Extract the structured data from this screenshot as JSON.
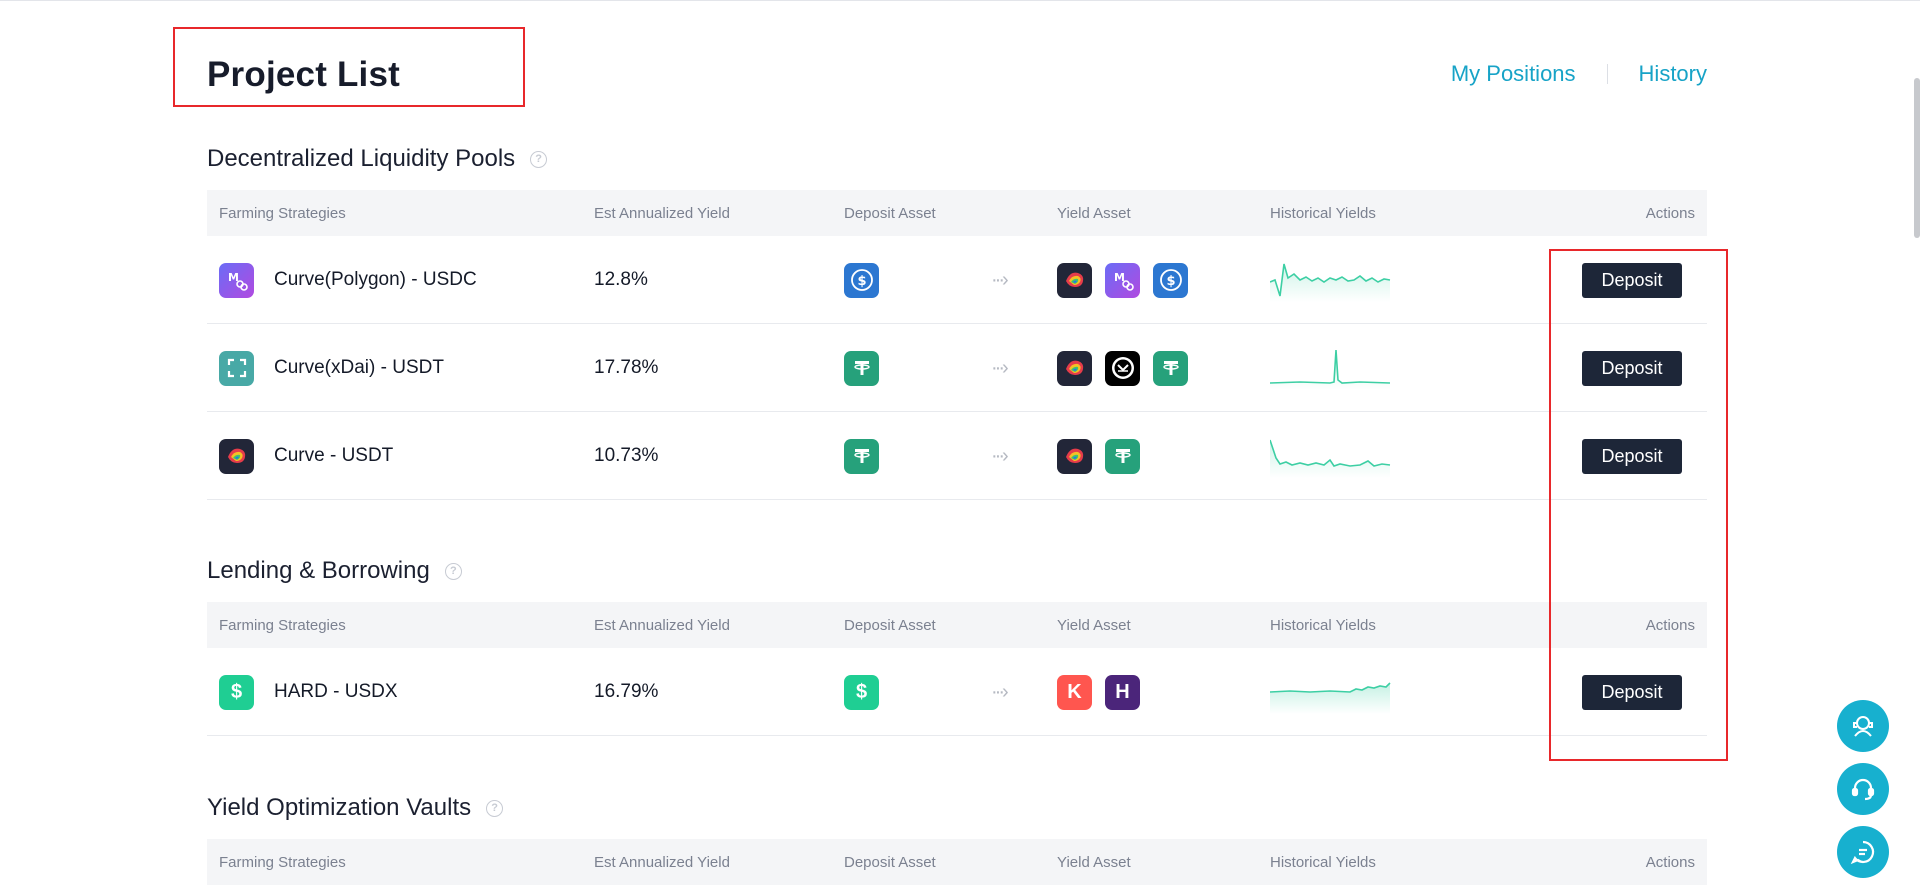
{
  "header": {
    "title": "Project List",
    "links": [
      "My Positions",
      "History"
    ]
  },
  "sections": [
    {
      "title": "Decentralized Liquidity Pools",
      "columns": [
        "Farming Strategies",
        "Est Annualized Yield",
        "Deposit Asset",
        "Yield Asset",
        "Historical Yields",
        "Actions"
      ],
      "rows": [
        {
          "name": "Curve(Polygon) - USDC",
          "yield": "12.8%",
          "icon": "polygon-icon",
          "deposit": [
            "usdc-icon"
          ],
          "yield_assets": [
            "curve-icon",
            "polygon-icon",
            "usdc-icon"
          ],
          "action": "Deposit"
        },
        {
          "name": "Curve(xDai) - USDT",
          "yield": "17.78%",
          "icon": "xdai-icon",
          "deposit": [
            "usdt-icon"
          ],
          "yield_assets": [
            "curve-icon",
            "gnosis-icon",
            "usdt-icon"
          ],
          "action": "Deposit"
        },
        {
          "name": "Curve - USDT",
          "yield": "10.73%",
          "icon": "curve-icon",
          "deposit": [
            "usdt-icon"
          ],
          "yield_assets": [
            "curve-icon",
            "usdt-icon"
          ],
          "action": "Deposit"
        }
      ]
    },
    {
      "title": "Lending & Borrowing",
      "columns": [
        "Farming Strategies",
        "Est Annualized Yield",
        "Deposit Asset",
        "Yield Asset",
        "Historical Yields",
        "Actions"
      ],
      "rows": [
        {
          "name": "HARD - USDX",
          "yield": "16.79%",
          "icon": "usdx-icon",
          "deposit": [
            "usdx-icon"
          ],
          "yield_assets": [
            "kava-icon",
            "hard-icon"
          ],
          "action": "Deposit"
        }
      ]
    },
    {
      "title": "Yield Optimization Vaults",
      "columns": [
        "Farming Strategies",
        "Est Annualized Yield",
        "Deposit Asset",
        "Yield Asset",
        "Historical Yields",
        "Actions"
      ],
      "rows": []
    }
  ],
  "colors": {
    "accent": "#17a3c7",
    "button": "#1d2638",
    "sparkline": "#3dcfa4",
    "annotation": "#e8282b"
  },
  "float_buttons": [
    "support-agent-icon",
    "headset-icon",
    "chat-icon"
  ]
}
